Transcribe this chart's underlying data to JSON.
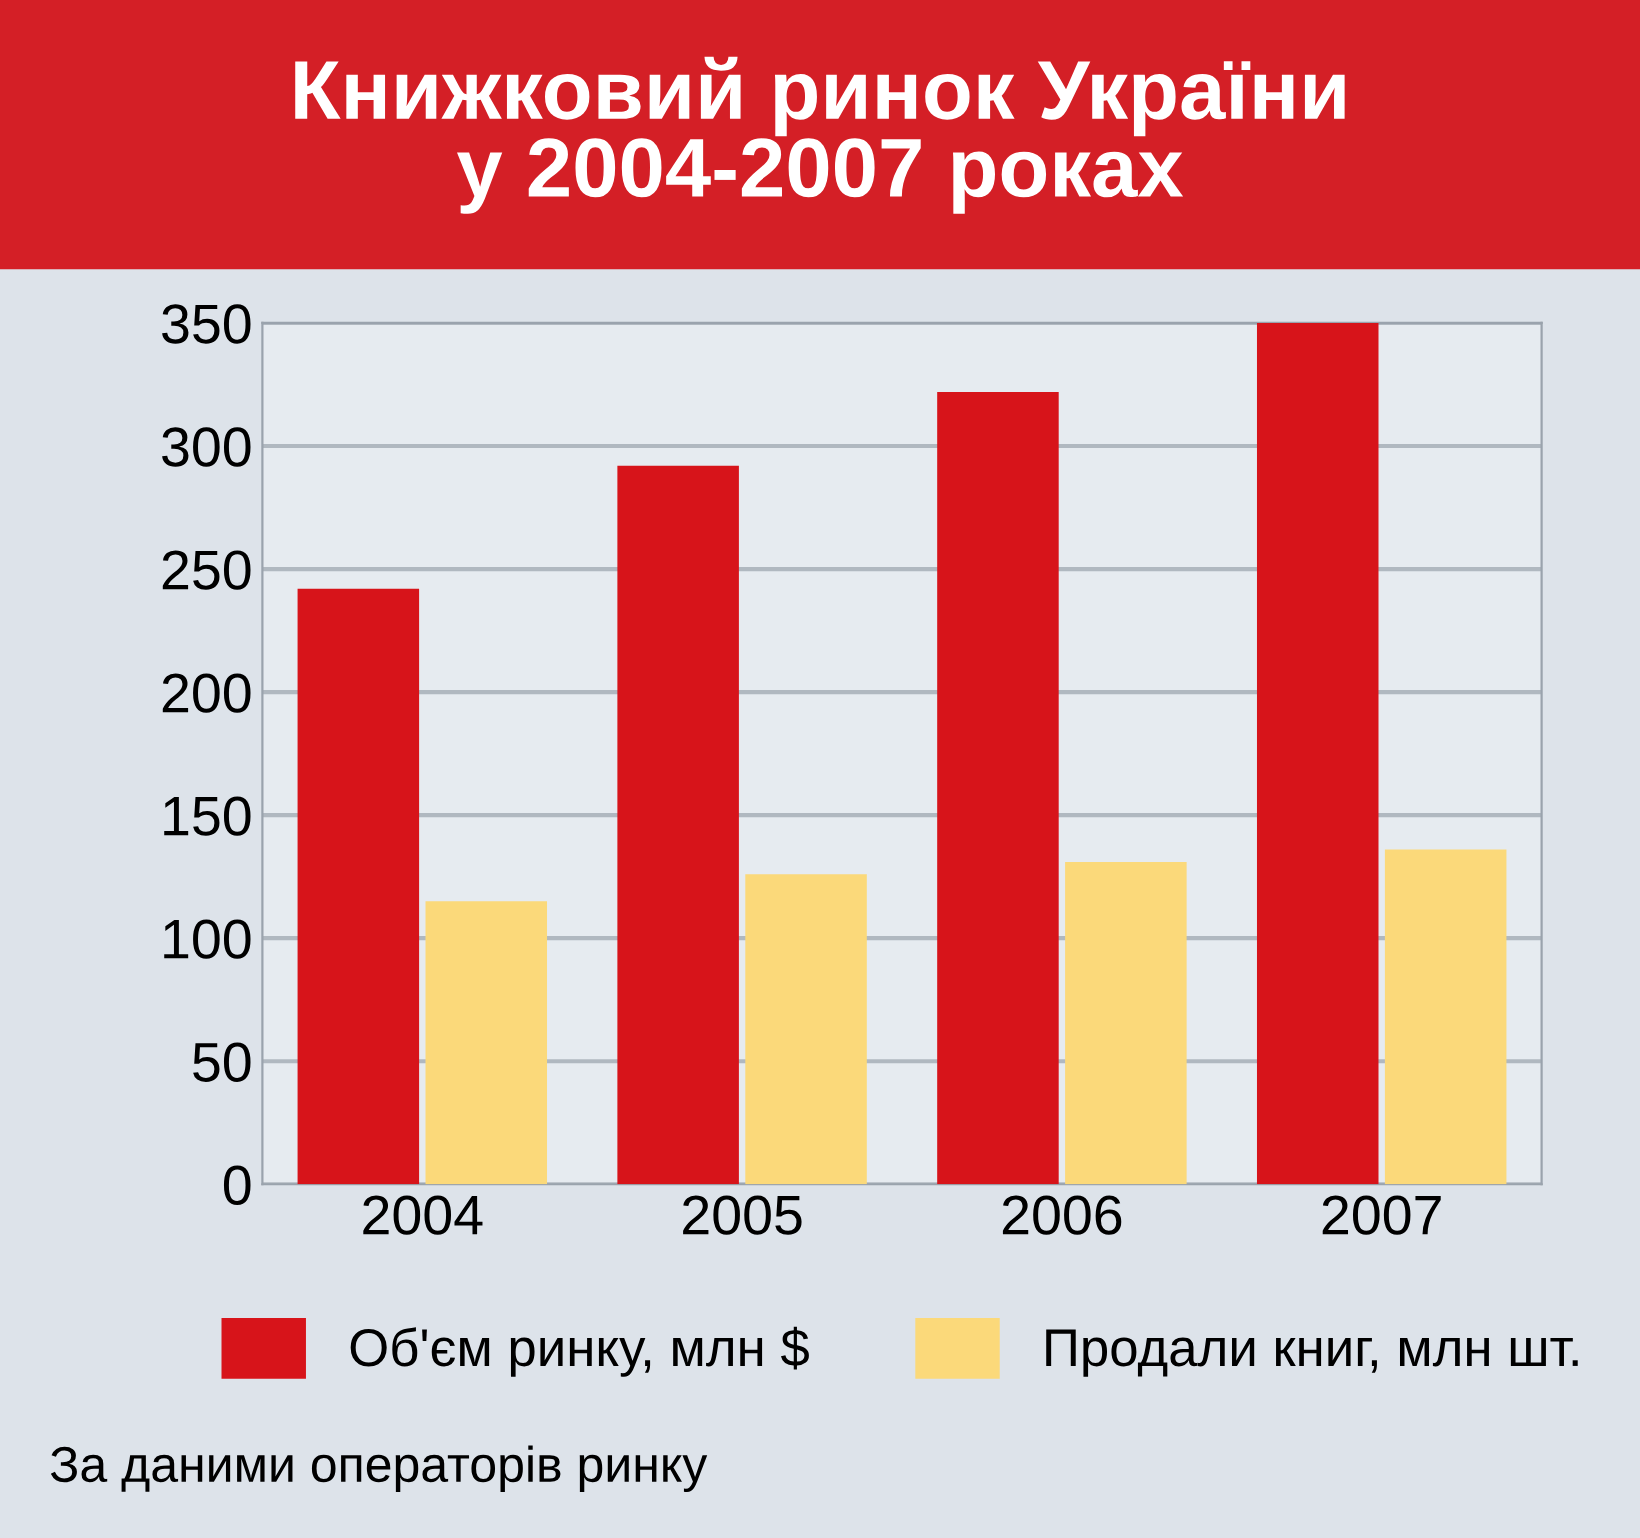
{
  "chart_data": {
    "type": "bar",
    "title": "Книжковий ринок України\nу 2004-2007 роках",
    "categories": [
      "2004",
      "2005",
      "2006",
      "2007"
    ],
    "series": [
      {
        "name": "Об'єм ринку, млн $",
        "color": "#d7141a",
        "values": [
          242,
          292,
          322,
          350
        ]
      },
      {
        "name": "Продали книг, млн шт.",
        "color": "#fbd97a",
        "values": [
          115,
          126,
          131,
          136
        ]
      }
    ],
    "ylim": [
      0,
      350
    ],
    "yticks": [
      0,
      50,
      100,
      150,
      200,
      250,
      300,
      350
    ],
    "grid": "y",
    "legend": "bottom",
    "annotations": [
      "За даними операторів ринку"
    ]
  }
}
